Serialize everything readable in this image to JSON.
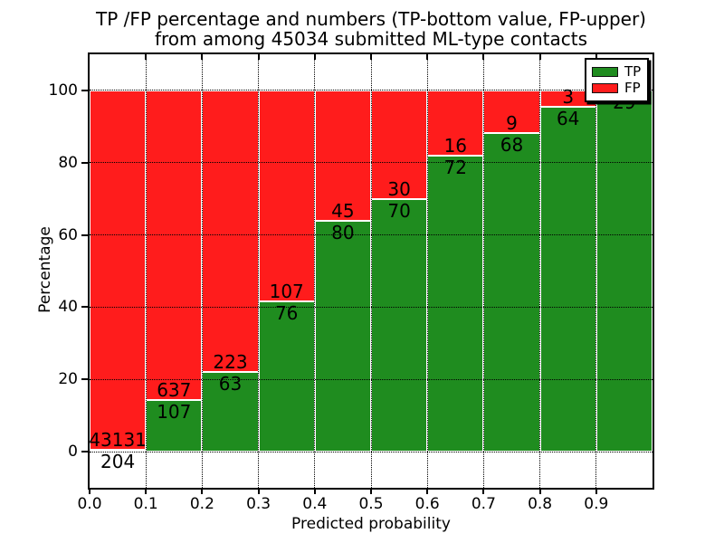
{
  "title": {
    "line1": "TP /FP percentage and numbers (TP-bottom value, FP-upper)",
    "line2": "from among 45034 submitted ML-type contacts"
  },
  "axes": {
    "xlabel": "Predicted probability",
    "ylabel": "Percentage",
    "xtick_labels": [
      "0.0",
      "0.1",
      "0.2",
      "0.3",
      "0.4",
      "0.5",
      "0.6",
      "0.7",
      "0.8",
      "0.9"
    ],
    "xtick_values": [
      0.0,
      0.1,
      0.2,
      0.3,
      0.4,
      0.5,
      0.6,
      0.7,
      0.8,
      0.9
    ],
    "ytick_labels": [
      "0",
      "20",
      "40",
      "60",
      "80",
      "100"
    ],
    "ytick_values": [
      0,
      20,
      40,
      60,
      80,
      100
    ],
    "xlim": [
      0.0,
      1.0
    ],
    "ylim": [
      -10,
      110
    ],
    "grid": "dotted-black-above-bars"
  },
  "legend": {
    "position": "upper-right",
    "items": [
      {
        "label": "TP",
        "color": "#1f8c1f"
      },
      {
        "label": "FP",
        "color": "#ff1c1c"
      }
    ]
  },
  "colors": {
    "tp_green": "#1f8c1f",
    "fp_red": "#ff1c1c",
    "bar_edge": "#ffffff",
    "grid": "#000000",
    "spine": "#000000",
    "background": "#ffffff",
    "text": "#000000"
  },
  "chart_data": {
    "type": "bar",
    "stacked": true,
    "title": "TP /FP percentage and numbers (TP-bottom value, FP-upper) from among 45034 submitted ML-type contacts",
    "xlabel": "Predicted probability",
    "ylabel": "Percentage",
    "xlim": [
      0.0,
      1.0
    ],
    "ylim": [
      -10,
      110
    ],
    "bin_edges": [
      0.0,
      0.1,
      0.2,
      0.3,
      0.4,
      0.5,
      0.6,
      0.7,
      0.8,
      0.9,
      1.0
    ],
    "total_contacts": 45034,
    "series": [
      {
        "name": "TP",
        "color": "#1f8c1f",
        "counts": [
          204,
          107,
          63,
          76,
          80,
          70,
          72,
          68,
          64,
          29
        ],
        "percent": [
          0.47,
          14.38,
          22.03,
          41.53,
          64.0,
          70.0,
          81.82,
          88.31,
          95.52,
          100.0
        ]
      },
      {
        "name": "FP",
        "color": "#ff1c1c",
        "counts": [
          43131,
          637,
          223,
          107,
          45,
          30,
          16,
          9,
          3,
          0
        ],
        "percent": [
          99.53,
          85.62,
          77.97,
          58.47,
          36.0,
          30.0,
          18.18,
          11.69,
          4.48,
          0.0
        ]
      }
    ],
    "bar_count_labels": {
      "tp": [
        "204",
        "107",
        "63",
        "76",
        "80",
        "70",
        "72",
        "68",
        "64",
        "29"
      ],
      "fp": [
        "43131",
        "637",
        "223",
        "107",
        "45",
        "30",
        "16",
        "9",
        "3",
        null
      ]
    }
  }
}
